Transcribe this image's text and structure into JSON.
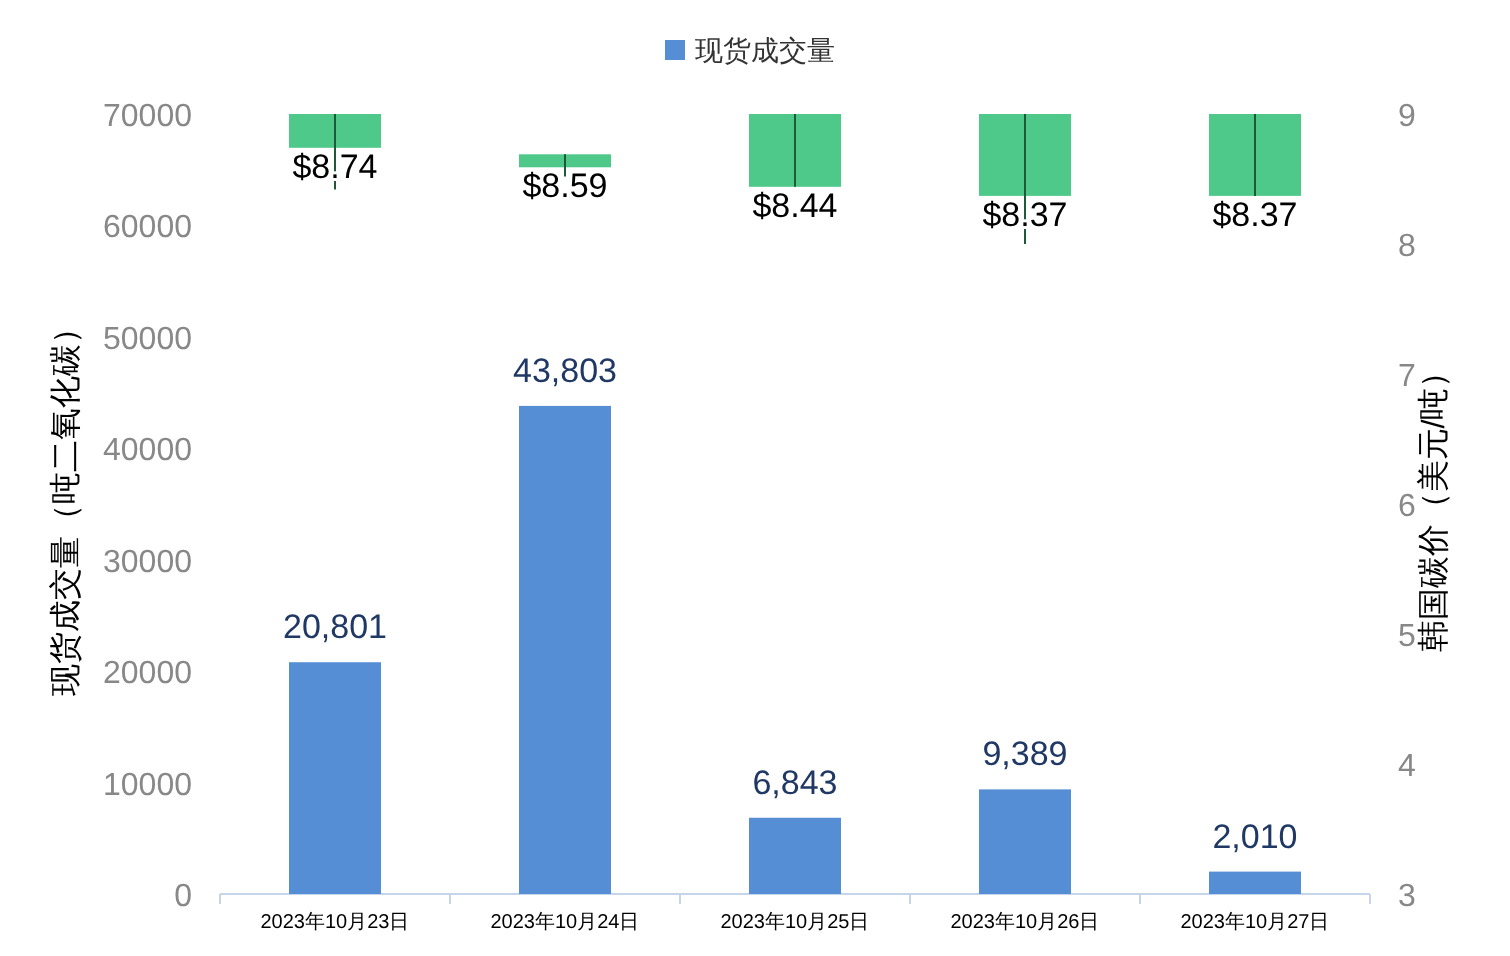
{
  "chart_data": {
    "type": "bar",
    "categories": [
      "2023年10月23日",
      "2023年10月24日",
      "2023年10月25日",
      "2023年10月26日",
      "2023年10月27日"
    ],
    "ylabel": "现货成交量（吨二氧化碳）",
    "y2label": "韩国碳价（美元/吨）",
    "series": [
      {
        "name": "现货成交量",
        "color": "#558ed5",
        "values": [
          20801,
          43803,
          6843,
          9389,
          2010
        ],
        "value_labels": [
          "20,801",
          "43,803",
          "6,843",
          "9,389",
          "2,010"
        ]
      },
      {
        "type": "candlestick",
        "axis": "y2",
        "color": "#4fc98a",
        "ohlc": [
          [
            9.0,
            9.0,
            8.42,
            8.74
          ],
          [
            8.69,
            8.69,
            8.52,
            8.59
          ],
          [
            9.0,
            9.0,
            8.44,
            8.44
          ],
          [
            9.0,
            9.0,
            8.0,
            8.37
          ],
          [
            9.0,
            9.0,
            8.37,
            8.37
          ]
        ],
        "value_labels": [
          "$8.74",
          "$8.59",
          "$8.44",
          "$8.37",
          "$8.37"
        ]
      }
    ],
    "ylim": [
      0,
      70000
    ],
    "yticks": [
      0,
      10000,
      20000,
      30000,
      40000,
      50000,
      60000,
      70000
    ],
    "y2lim": [
      3,
      9
    ],
    "y2ticks": [
      3,
      4,
      5,
      6,
      7,
      8,
      9
    ],
    "legend": "top",
    "grid": false
  }
}
